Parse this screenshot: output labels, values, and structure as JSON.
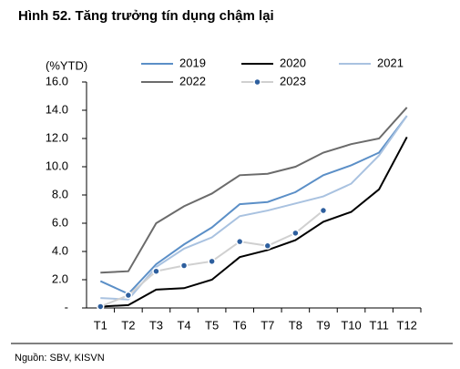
{
  "chart_data": {
    "type": "line",
    "title": "Hình 52. Tăng trưởng tín dụng chậm lại",
    "y_label": "(%YTD)",
    "source": "Nguồn: SBV, KISVN",
    "categories": [
      "T1",
      "T2",
      "T3",
      "T4",
      "T5",
      "T6",
      "T7",
      "T8",
      "T9",
      "T10",
      "T11",
      "T12"
    ],
    "series": [
      {
        "name": "2019",
        "color": "#5b8fc7",
        "values": [
          1.9,
          1.0,
          3.1,
          4.5,
          5.7,
          7.35,
          7.5,
          8.2,
          9.4,
          10.1,
          11.0,
          13.6
        ]
      },
      {
        "name": "2020",
        "color": "#000000",
        "values": [
          0.1,
          0.2,
          1.3,
          1.4,
          2.0,
          3.6,
          4.1,
          4.8,
          6.1,
          6.8,
          8.4,
          12.1
        ]
      },
      {
        "name": "2021",
        "color": "#a9c2e0",
        "values": [
          0.7,
          0.6,
          2.9,
          4.2,
          5.0,
          6.5,
          6.9,
          7.4,
          7.9,
          8.8,
          10.8,
          13.6
        ]
      },
      {
        "name": "2022",
        "color": "#6b6b6b",
        "values": [
          2.5,
          2.6,
          6.0,
          7.2,
          8.1,
          9.4,
          9.5,
          10.0,
          11.0,
          11.6,
          12.0,
          14.2
        ]
      },
      {
        "name": "2023",
        "color": "#d0d0d0",
        "marker_color": "#2e5f9e",
        "values": [
          0.1,
          0.9,
          2.6,
          3.0,
          3.3,
          4.7,
          4.4,
          5.3,
          6.9,
          null,
          null,
          null
        ]
      }
    ],
    "ylim": [
      0,
      16
    ],
    "yticks": [
      {
        "value": 0,
        "label": "-"
      },
      {
        "value": 2,
        "label": "2.0"
      },
      {
        "value": 4,
        "label": "4.0"
      },
      {
        "value": 6,
        "label": "6.0"
      },
      {
        "value": 8,
        "label": "8.0"
      },
      {
        "value": 10,
        "label": "10.0"
      },
      {
        "value": 12,
        "label": "12.0"
      },
      {
        "value": 14,
        "label": "14.0"
      },
      {
        "value": 16,
        "label": "16.0"
      }
    ]
  }
}
